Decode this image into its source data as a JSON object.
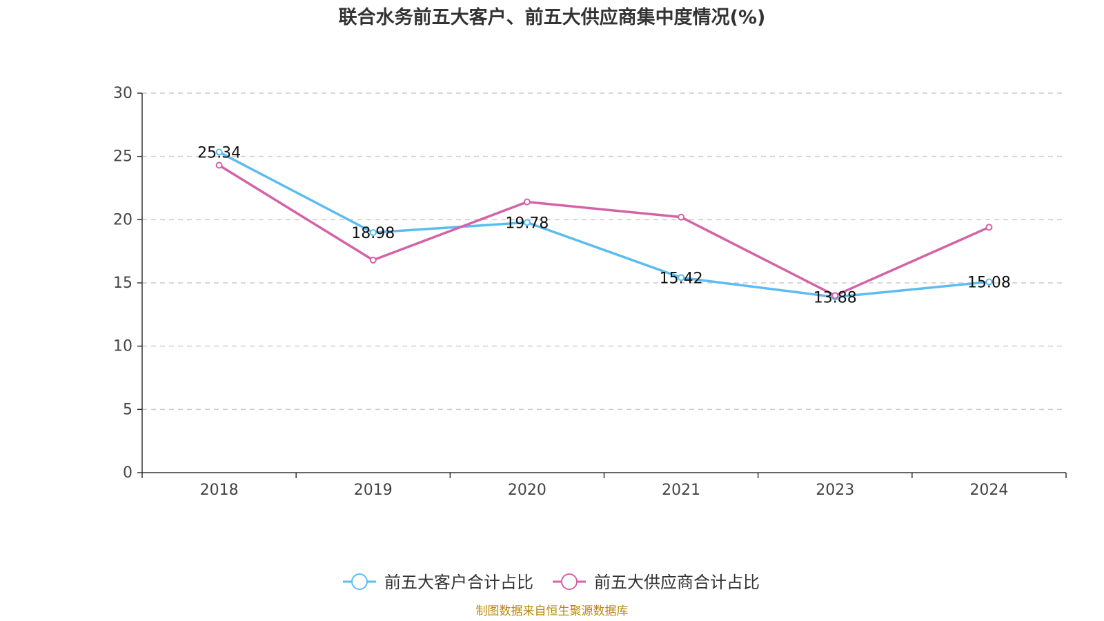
{
  "chart_data": {
    "type": "line",
    "title": "联合水务前五大客户、前五大供应商集中度情况(%)",
    "categories": [
      "2018",
      "2019",
      "2020",
      "2021",
      "2023",
      "2024"
    ],
    "ylim": [
      0,
      30
    ],
    "yticks": [
      "0",
      "5",
      "10",
      "15",
      "20",
      "25",
      "30"
    ],
    "grid": "horizontal dashed",
    "legend_position": "bottom-center",
    "series": [
      {
        "name": "前五大客户合计占比",
        "color": "#5bbcf0",
        "values": [
          25.34,
          18.98,
          19.78,
          15.42,
          13.88,
          15.08
        ],
        "labels": [
          "25.34",
          "18.98",
          "19.78",
          "15.42",
          "13.88",
          "15.08"
        ]
      },
      {
        "name": "前五大供应商合计占比",
        "color": "#d462a6",
        "values": [
          24.3,
          16.8,
          21.4,
          20.2,
          14.0,
          19.4
        ]
      }
    ]
  },
  "source": "制图数据来自恒生聚源数据库"
}
